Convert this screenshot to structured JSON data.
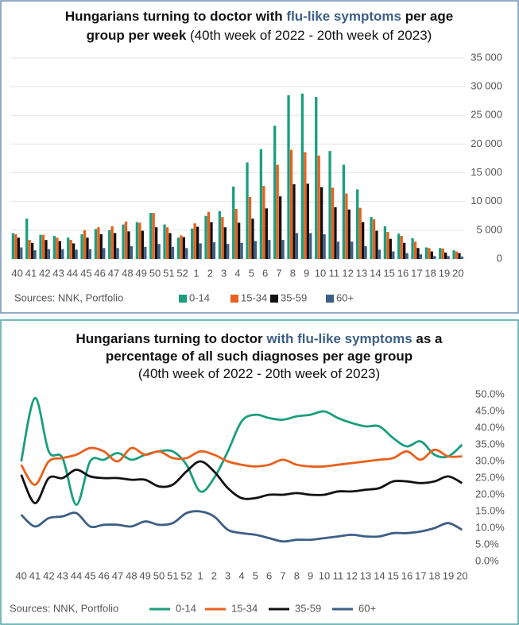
{
  "chart_data": [
    {
      "type": "bar",
      "title": [
        [
          "Hungarians turning to doctor with ",
          "flu-like symptoms",
          " per age"
        ],
        [
          "group per week",
          " (40th week of 2022 - 20th week of 2023)"
        ]
      ],
      "source": "Sources: NNK, Portfolio",
      "categories": [
        "40",
        "41",
        "42",
        "43",
        "44",
        "45",
        "46",
        "47",
        "48",
        "49",
        "50",
        "51",
        "52",
        "1",
        "2",
        "3",
        "4",
        "5",
        "6",
        "7",
        "8",
        "9",
        "10",
        "11",
        "12",
        "13",
        "14",
        "15",
        "16",
        "17",
        "18",
        "19",
        "20"
      ],
      "series": [
        {
          "name": "0-14",
          "color": "#1a9e7e",
          "values": [
            4500,
            7000,
            4200,
            4000,
            3700,
            4300,
            5200,
            5000,
            6000,
            6400,
            8000,
            6000,
            3700,
            5300,
            7500,
            8300,
            12600,
            16800,
            19100,
            23200,
            28500,
            28800,
            28200,
            18800,
            16400,
            12100,
            7300,
            5700,
            4400,
            3600,
            2000,
            1900,
            1500
          ]
        },
        {
          "name": "15-34",
          "color": "#e8601c",
          "values": [
            4300,
            3300,
            4200,
            3700,
            3300,
            5000,
            5500,
            5700,
            6500,
            6300,
            8000,
            5500,
            4100,
            6200,
            8200,
            7300,
            8700,
            10800,
            12700,
            16400,
            19000,
            18600,
            18000,
            12400,
            11400,
            8900,
            6900,
            4700,
            4000,
            3000,
            1900,
            1800,
            1300
          ]
        },
        {
          "name": "35-59",
          "color": "#111111",
          "values": [
            3700,
            2800,
            3300,
            3100,
            2700,
            3700,
            4300,
            4500,
            4800,
            4900,
            5500,
            4500,
            3800,
            5600,
            6400,
            5500,
            6300,
            7000,
            8800,
            10900,
            13000,
            13100,
            12500,
            9000,
            8600,
            6400,
            4900,
            3500,
            2800,
            1900,
            1300,
            1100,
            1000
          ]
        },
        {
          "name": "60+",
          "color": "#3d5f86",
          "values": [
            2000,
            1500,
            1700,
            1700,
            1600,
            1700,
            1900,
            1900,
            2200,
            2100,
            2600,
            2100,
            1900,
            2700,
            2900,
            2600,
            2800,
            3100,
            3300,
            3300,
            4500,
            4500,
            4300,
            3000,
            3000,
            2200,
            1600,
            1300,
            1000,
            800,
            500,
            500,
            400
          ]
        }
      ],
      "ylim": [
        0,
        35000
      ],
      "yticks": [
        0,
        {
          "value": 5000,
          "label": "5 000"
        },
        {
          "value": 10000,
          "label": "10 000"
        },
        {
          "value": 15000,
          "label": "15 000"
        },
        {
          "value": 20000,
          "label": "20 000"
        },
        {
          "value": 25000,
          "label": "25 000"
        },
        {
          "value": 30000,
          "label": "30 000"
        },
        {
          "value": 35000,
          "label": "35 000"
        }
      ],
      "grid": true
    },
    {
      "type": "line",
      "title": [
        [
          "Hungarians turning to doctor ",
          "with flu-like symptoms",
          " as a"
        ],
        [
          "percentage of all such diagnoses per age group"
        ],
        [
          "(40th week of 2022 - 20th week of 2023)"
        ]
      ],
      "source": "Sources: NNK, Portfolio",
      "categories": [
        "40",
        "41",
        "42",
        "43",
        "44",
        "45",
        "46",
        "47",
        "48",
        "49",
        "50",
        "51",
        "52",
        "1",
        "2",
        "3",
        "4",
        "5",
        "6",
        "7",
        "8",
        "9",
        "10",
        "11",
        "12",
        "13",
        "14",
        "15",
        "16",
        "17",
        "18",
        "19",
        "20"
      ],
      "series": [
        {
          "name": "0-14",
          "color": "#1a9e7e",
          "values": [
            30,
            49,
            33,
            31,
            17,
            30,
            30.5,
            32.5,
            30.5,
            32,
            33,
            33,
            29,
            21,
            25,
            33,
            42,
            44,
            43,
            42.5,
            43.5,
            44,
            45,
            43,
            41.5,
            40.5,
            40.5,
            37,
            34.5,
            36,
            32,
            31.5,
            35
          ]
        },
        {
          "name": "15-34",
          "color": "#e8601c",
          "values": [
            29,
            23,
            30,
            31,
            32,
            34,
            33,
            30,
            34,
            32,
            33,
            31,
            31,
            33,
            32,
            30,
            29,
            28.5,
            29,
            30.5,
            29,
            28.5,
            28.5,
            29,
            29.5,
            30,
            30.5,
            31,
            33,
            30.5,
            33.5,
            31.5,
            31.5
          ]
        },
        {
          "name": "35-59",
          "color": "#111111",
          "values": [
            26,
            17.5,
            25,
            25,
            27.5,
            25.5,
            25,
            25,
            24.5,
            24.5,
            22.5,
            23,
            27,
            30,
            27,
            22,
            19,
            19,
            20,
            20,
            20.5,
            20,
            20,
            21,
            21,
            21.5,
            22,
            24,
            24,
            23.5,
            24,
            25.5,
            23.5
          ]
        },
        {
          "name": "60+",
          "color": "#3d5f86",
          "values": [
            14,
            10.5,
            13,
            13.5,
            14.5,
            10.5,
            11,
            11,
            10.5,
            12,
            11,
            11.5,
            14.5,
            15,
            13.5,
            9.5,
            8.5,
            8,
            7,
            6,
            6.5,
            6.5,
            7,
            7.5,
            8,
            7.5,
            7.5,
            8.5,
            8.5,
            9,
            10,
            11.5,
            9.5
          ]
        }
      ],
      "ylim": [
        0,
        50
      ],
      "yticks": [
        {
          "value": 0,
          "label": "0.0%"
        },
        {
          "value": 5,
          "label": "5.0%"
        },
        {
          "value": 10,
          "label": "10.0%"
        },
        {
          "value": 15,
          "label": "15.0%"
        },
        {
          "value": 20,
          "label": "20.0%"
        },
        {
          "value": 25,
          "label": "25.0%"
        },
        {
          "value": 30,
          "label": "30.0%"
        },
        {
          "value": 35,
          "label": "35.0%"
        },
        {
          "value": 40,
          "label": "40.0%"
        },
        {
          "value": 45,
          "label": "45.0%"
        },
        {
          "value": 50,
          "label": "50.0%"
        }
      ],
      "grid": false
    }
  ]
}
